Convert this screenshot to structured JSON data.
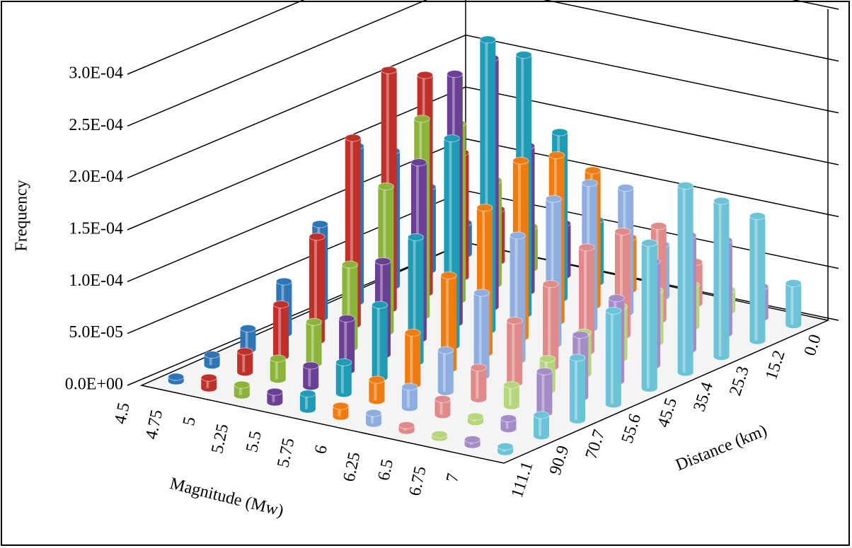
{
  "chart_data": {
    "type": "bar3d",
    "x_label": "Magnitude (Mw)",
    "z_label": "Distance (km)",
    "y_label": "Frequency",
    "categories": [
      "0.0",
      "15.2",
      "25.3",
      "35.4",
      "45.5",
      "55.6",
      "70.7",
      "90.9",
      "111.1"
    ],
    "ylim": [
      0,
      0.0003
    ],
    "yticks": [
      {
        "value": 0,
        "label": "0.0E+00"
      },
      {
        "value": 5e-05,
        "label": "5.0E-05"
      },
      {
        "value": 0.0001,
        "label": "1.0E-04"
      },
      {
        "value": 0.00015,
        "label": "1.5E-04"
      },
      {
        "value": 0.0002,
        "label": "2.0E-04"
      },
      {
        "value": 0.00025,
        "label": "2.5E-04"
      },
      {
        "value": 0.0003,
        "label": "3.0E-04"
      }
    ],
    "series": [
      {
        "name": "4.5",
        "color": "#2e75b6",
        "values": [
          3e-05,
          8e-05,
          0.00013,
          0.00015,
          9e-05,
          5e-05,
          2e-05,
          1e-05,
          4e-06
        ]
      },
      {
        "name": "4.75",
        "color": "#c0302b",
        "values": [
          5e-05,
          0.00012,
          0.00021,
          0.00023,
          0.00018,
          0.0001,
          5e-05,
          2e-05,
          1e-05
        ]
      },
      {
        "name": "5",
        "color": "#8cb43a",
        "values": [
          4e-05,
          0.0001,
          0.00017,
          0.00019,
          0.00014,
          8e-05,
          4e-05,
          2e-05,
          1e-05
        ]
      },
      {
        "name": "5.25",
        "color": "#6a3f96",
        "values": [
          5e-05,
          0.00014,
          0.00024,
          0.00024,
          0.00017,
          9e-05,
          5e-05,
          2e-05,
          1e-05
        ]
      },
      {
        "name": "5.5",
        "color": "#1e9bb5",
        "values": [
          6e-05,
          0.00016,
          0.00025,
          0.00028,
          0.0002,
          0.00012,
          7e-05,
          3e-05,
          1.5e-05
        ]
      },
      {
        "name": "5.75",
        "color": "#f07c10",
        "values": [
          5e-05,
          0.00013,
          0.00016,
          0.00017,
          0.00014,
          9e-05,
          5e-05,
          2e-05,
          1e-05
        ]
      },
      {
        "name": "6",
        "color": "#8eaee0",
        "values": [
          5e-05,
          0.00012,
          0.00014,
          0.00014,
          0.00012,
          8e-05,
          4e-05,
          2e-05,
          1e-05
        ]
      },
      {
        "name": "6.25",
        "color": "#e08a8a",
        "values": [
          4e-05,
          9e-05,
          0.0001,
          0.0001,
          8e-05,
          6e-05,
          3e-05,
          1.5e-05,
          5e-06
        ]
      },
      {
        "name": "6.5",
        "color": "#b5d67a",
        "values": [
          2e-05,
          4e-05,
          5e-05,
          5e-05,
          4e-05,
          3e-05,
          2e-05,
          5e-06,
          3e-06
        ]
      },
      {
        "name": "6.75",
        "color": "#a48cc8",
        "values": [
          3e-05,
          9e-05,
          0.00011,
          0.0001,
          8e-05,
          6e-05,
          4e-05,
          1e-05,
          5e-06
        ]
      },
      {
        "name": "7",
        "color": "#6cc3d8",
        "values": [
          4e-05,
          0.00012,
          0.00015,
          0.00018,
          0.00014,
          9e-05,
          6e-05,
          2e-05,
          5e-06
        ]
      }
    ]
  }
}
